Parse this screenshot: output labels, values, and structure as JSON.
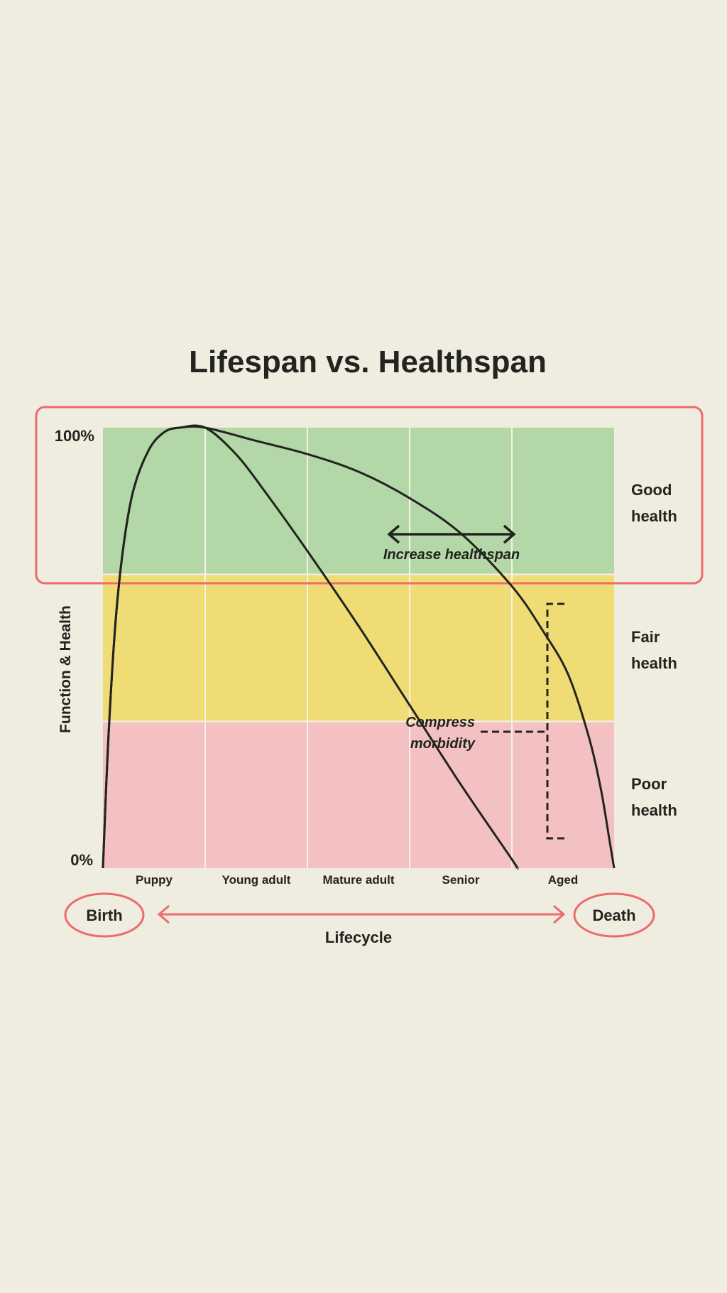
{
  "chart_data": {
    "type": "line",
    "title": "Lifespan vs. Healthspan",
    "ylabel": "Function & Health",
    "xlabel": "Lifecycle",
    "y_ticks": [
      "100%",
      "0%"
    ],
    "ylim": [
      0,
      100
    ],
    "xlim": [
      0,
      5
    ],
    "categories": [
      "Puppy",
      "Young adult",
      "Mature adult",
      "Senior",
      "Aged"
    ],
    "zones": [
      {
        "label": [
          "Good",
          "health"
        ],
        "from": 66.7,
        "to": 100,
        "color": "#b3d7a6"
      },
      {
        "label": [
          "Fair",
          "health"
        ],
        "from": 33.3,
        "to": 66.7,
        "color": "#f0dc75"
      },
      {
        "label": [
          "Poor",
          "health"
        ],
        "from": 0,
        "to": 33.3,
        "color": "#f4c1c3"
      }
    ],
    "series": [
      {
        "values": [
          [
            0,
            0
          ],
          [
            0.05,
            28
          ],
          [
            0.12,
            55
          ],
          [
            0.2,
            73
          ],
          [
            0.3,
            86
          ],
          [
            0.45,
            95
          ],
          [
            0.6,
            99
          ],
          [
            0.75,
            100
          ],
          [
            1,
            100
          ],
          [
            1.3,
            94
          ],
          [
            1.6,
            85
          ],
          [
            2,
            72
          ],
          [
            2.5,
            55
          ],
          [
            3,
            37
          ],
          [
            3.5,
            19
          ],
          [
            4,
            2
          ],
          [
            4.05,
            0
          ]
        ]
      },
      {
        "values": [
          [
            0,
            0
          ],
          [
            0.05,
            28
          ],
          [
            0.12,
            55
          ],
          [
            0.2,
            73
          ],
          [
            0.3,
            86
          ],
          [
            0.45,
            95
          ],
          [
            0.6,
            99
          ],
          [
            0.75,
            100
          ],
          [
            1,
            100
          ],
          [
            1.5,
            97
          ],
          [
            2,
            94
          ],
          [
            2.5,
            90
          ],
          [
            3,
            84
          ],
          [
            3.5,
            76
          ],
          [
            4,
            64
          ],
          [
            4.3,
            54
          ],
          [
            4.55,
            44
          ],
          [
            4.75,
            30
          ],
          [
            4.87,
            18
          ],
          [
            4.95,
            7
          ],
          [
            5,
            0
          ]
        ]
      }
    ],
    "annotations": [
      {
        "text": "Increase healthspan"
      },
      {
        "text": [
          "Compress",
          "morbidity"
        ]
      }
    ],
    "lifecycle": {
      "start": "Birth",
      "end": "Death"
    },
    "colors": {
      "accent": "#ed6b6b",
      "line": "#23231f",
      "background": "#efece0",
      "gridline": "#f5f2e8"
    }
  }
}
